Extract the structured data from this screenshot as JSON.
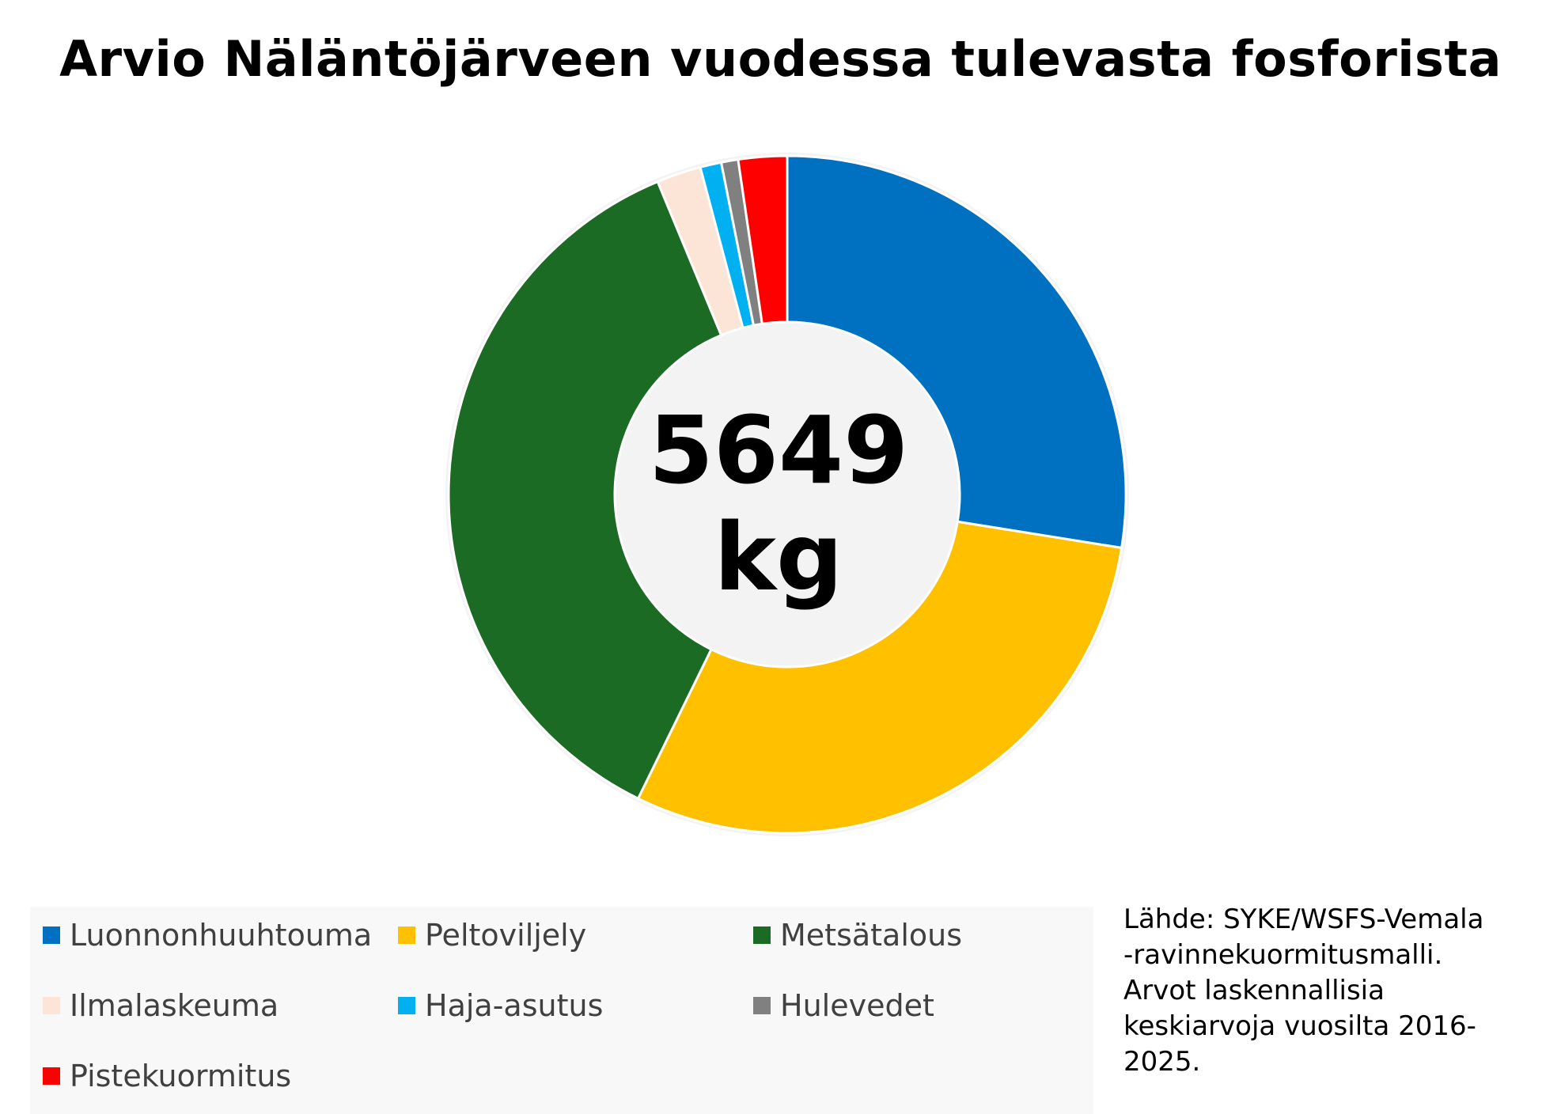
{
  "chart_data": {
    "type": "pie",
    "title": "Arvio Näläntöjärveen vuodessa tulevasta fosforista",
    "center_label": {
      "value": "5649",
      "unit": "kg"
    },
    "categories": [
      "Luonnonhuuhtouma",
      "Peltoviljely",
      "Metsätalous",
      "Ilmalaskeuma",
      "Haja-asutus",
      "Hulevedet",
      "Pistekuormitus"
    ],
    "values": [
      27.3,
      29.5,
      36.2,
      2.1,
      1.0,
      0.8,
      2.3
    ],
    "colors": [
      "#0070C0",
      "#FFC000",
      "#1B6B25",
      "#FCE4D6",
      "#00B0F0",
      "#808080",
      "#FF0000"
    ],
    "hole": "donut",
    "legend_position": "bottom"
  },
  "source": {
    "lines": [
      "Lähde: SYKE/WSFS-Vemala",
      "-ravinnekuormitusmalli.",
      "Arvot laskennallisia",
      "keskiarvoja vuosilta 2016-",
      "2025."
    ]
  }
}
